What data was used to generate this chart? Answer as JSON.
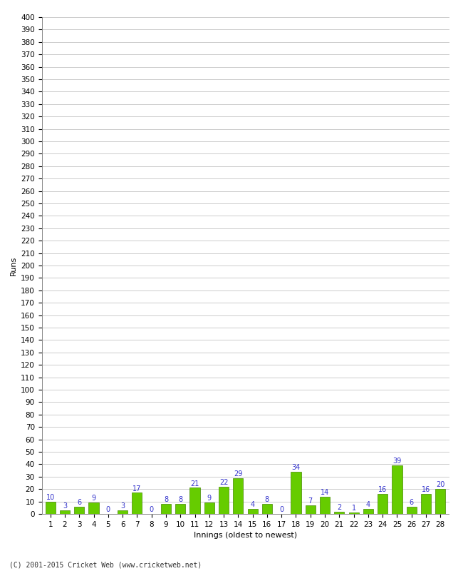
{
  "xlabel": "Innings (oldest to newest)",
  "ylabel": "Runs",
  "footer": "(C) 2001-2015 Cricket Web (www.cricketweb.net)",
  "categories": [
    1,
    2,
    3,
    4,
    5,
    6,
    7,
    8,
    9,
    10,
    11,
    12,
    13,
    14,
    15,
    16,
    17,
    18,
    19,
    20,
    21,
    22,
    23,
    24,
    25,
    26,
    27,
    28
  ],
  "values": [
    10,
    3,
    6,
    9,
    0,
    3,
    17,
    0,
    8,
    8,
    21,
    9,
    22,
    29,
    4,
    8,
    0,
    34,
    7,
    14,
    2,
    1,
    4,
    16,
    39,
    6,
    16,
    20
  ],
  "bar_color": "#66cc00",
  "bar_edge_color": "#448800",
  "label_color": "#3333cc",
  "ylim": [
    0,
    400
  ],
  "yticks": [
    0,
    10,
    20,
    30,
    40,
    50,
    60,
    70,
    80,
    90,
    100,
    110,
    120,
    130,
    140,
    150,
    160,
    170,
    180,
    190,
    200,
    210,
    220,
    230,
    240,
    250,
    260,
    270,
    280,
    290,
    300,
    310,
    320,
    330,
    340,
    350,
    360,
    370,
    380,
    390,
    400
  ],
  "background_color": "#ffffff",
  "grid_color": "#cccccc",
  "axis_label_fontsize": 8,
  "tick_fontsize": 7.5,
  "bar_label_fontsize": 7.0
}
